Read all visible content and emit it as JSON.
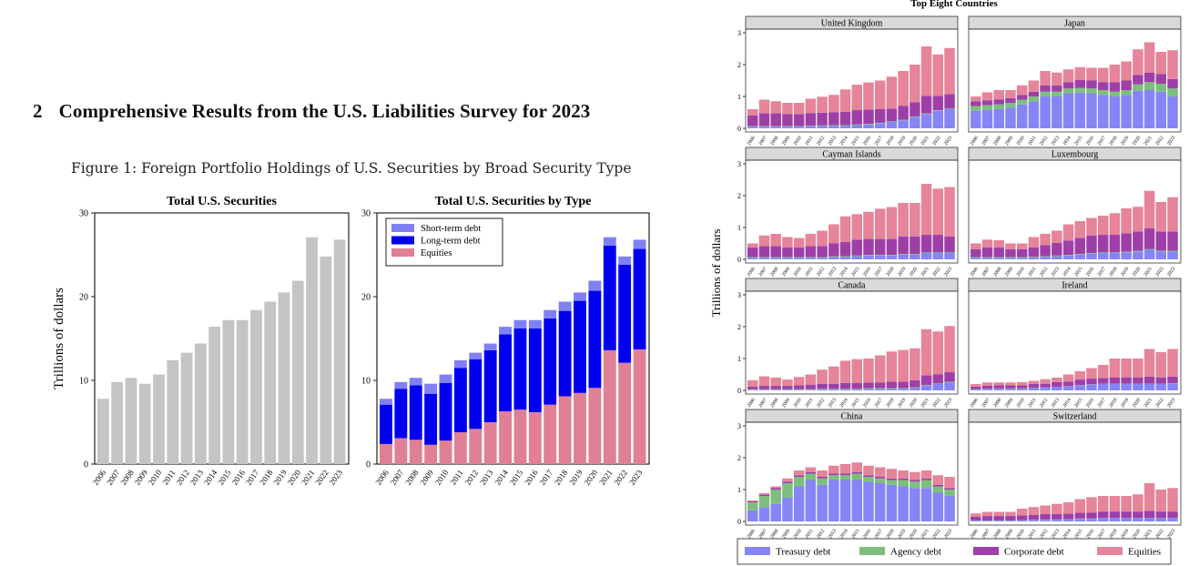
{
  "section": {
    "number": "2",
    "title": "Comprehensive Results from the U.S. Liabilities Survey for 2023"
  },
  "figure": {
    "caption": "Figure 1: Foreign Portfolio Holdings of U.S. Securities by Broad Security Type"
  },
  "colors": {
    "gray_bar": "#c4c4c4",
    "short_term": "#8080f5",
    "long_term": "#0000f0",
    "equities_left": "#e07f95",
    "treasury": "#8585f8",
    "agency": "#7cbf7c",
    "corporate": "#9e3fa8",
    "equities_right": "#e68499",
    "panel_strip": "#d9d9d9"
  },
  "chart_data": [
    {
      "type": "bar",
      "title": "Total U.S. Securities",
      "ylabel": "Trillions of dollars",
      "xlabel": "",
      "ylim": [
        0,
        30
      ],
      "yticks": [
        "0",
        "10",
        "20",
        "30"
      ],
      "categories": [
        "2006",
        "2007",
        "2008",
        "2009",
        "2010",
        "2011",
        "2012",
        "2013",
        "2014",
        "2015",
        "2016",
        "2017",
        "2018",
        "2019",
        "2020",
        "2021",
        "2022",
        "2023"
      ],
      "values": [
        7.8,
        9.8,
        10.3,
        9.6,
        10.7,
        12.4,
        13.3,
        14.4,
        16.4,
        17.2,
        17.2,
        18.4,
        19.4,
        20.5,
        21.9,
        27.1,
        24.8,
        26.8
      ]
    },
    {
      "type": "stacked-bar",
      "title": "Total U.S. Securities by Type",
      "ylim": [
        0,
        30
      ],
      "yticks": [
        "0",
        "10",
        "20",
        "30"
      ],
      "legend_position": "top-left",
      "categories": [
        "2006",
        "2007",
        "2008",
        "2009",
        "2010",
        "2011",
        "2012",
        "2013",
        "2014",
        "2015",
        "2016",
        "2017",
        "2018",
        "2019",
        "2020",
        "2021",
        "2022",
        "2023"
      ],
      "series": [
        {
          "name": "Equities",
          "values": [
            2.4,
            3.1,
            2.9,
            2.3,
            2.8,
            3.8,
            4.2,
            5.0,
            6.3,
            6.5,
            6.2,
            7.1,
            8.1,
            8.5,
            9.1,
            13.6,
            12.1,
            13.7
          ]
        },
        {
          "name": "Long-term debt",
          "values": [
            4.7,
            5.9,
            6.5,
            6.1,
            6.9,
            7.7,
            8.3,
            8.6,
            9.2,
            9.7,
            10.0,
            10.3,
            10.2,
            11.0,
            11.6,
            12.5,
            11.7,
            12.0
          ]
        },
        {
          "name": "Short-term debt",
          "values": [
            0.7,
            0.8,
            0.9,
            1.2,
            1.0,
            0.9,
            0.8,
            0.8,
            0.9,
            1.0,
            1.0,
            1.0,
            1.1,
            1.0,
            1.2,
            1.0,
            1.0,
            1.1
          ]
        }
      ],
      "legend_order": [
        "Short-term debt",
        "Long-term debt",
        "Equities"
      ]
    },
    {
      "type": "stacked-bar-facets",
      "title": "Top Eight Countries",
      "ylabel": "Trillions of dollars",
      "ylim": [
        0,
        3
      ],
      "yticks": [
        "0",
        "1",
        "2",
        "3"
      ],
      "categories": [
        "2006",
        "2007",
        "2008",
        "2009",
        "2010",
        "2011",
        "2012",
        "2013",
        "2014",
        "2015",
        "2016",
        "2017",
        "2018",
        "2019",
        "2020",
        "2021",
        "2022",
        "2023"
      ],
      "series_names": [
        "Treasury debt",
        "Agency debt",
        "Corporate debt",
        "Equities"
      ],
      "panels": [
        {
          "name": "United Kingdom",
          "treasury": [
            0.05,
            0.05,
            0.05,
            0.05,
            0.05,
            0.06,
            0.07,
            0.08,
            0.08,
            0.1,
            0.12,
            0.15,
            0.2,
            0.25,
            0.35,
            0.45,
            0.55,
            0.6
          ],
          "agency": [
            0.02,
            0.02,
            0.02,
            0.02,
            0.02,
            0.02,
            0.02,
            0.02,
            0.02,
            0.02,
            0.02,
            0.02,
            0.02,
            0.02,
            0.02,
            0.02,
            0.02,
            0.02
          ],
          "corporate": [
            0.33,
            0.4,
            0.4,
            0.38,
            0.38,
            0.4,
            0.4,
            0.4,
            0.42,
            0.45,
            0.45,
            0.43,
            0.4,
            0.43,
            0.45,
            0.55,
            0.45,
            0.45
          ],
          "equities": [
            0.2,
            0.43,
            0.38,
            0.35,
            0.35,
            0.45,
            0.5,
            0.55,
            0.7,
            0.8,
            0.85,
            0.9,
            1.0,
            1.1,
            1.18,
            1.55,
            1.3,
            1.45
          ]
        },
        {
          "name": "Japan",
          "treasury": [
            0.55,
            0.58,
            0.6,
            0.65,
            0.75,
            0.85,
            1.0,
            1.0,
            1.1,
            1.12,
            1.1,
            1.05,
            1.0,
            1.05,
            1.18,
            1.2,
            1.15,
            1.0
          ],
          "agency": [
            0.15,
            0.15,
            0.15,
            0.15,
            0.15,
            0.15,
            0.15,
            0.15,
            0.15,
            0.15,
            0.15,
            0.15,
            0.15,
            0.15,
            0.2,
            0.25,
            0.25,
            0.25
          ],
          "corporate": [
            0.15,
            0.15,
            0.15,
            0.15,
            0.15,
            0.15,
            0.2,
            0.2,
            0.2,
            0.25,
            0.25,
            0.25,
            0.3,
            0.3,
            0.3,
            0.3,
            0.3,
            0.3
          ],
          "equities": [
            0.15,
            0.25,
            0.3,
            0.25,
            0.3,
            0.35,
            0.45,
            0.4,
            0.4,
            0.4,
            0.4,
            0.45,
            0.55,
            0.6,
            0.8,
            0.95,
            0.7,
            0.9
          ]
        },
        {
          "name": "Cayman Islands",
          "treasury": [
            0.05,
            0.05,
            0.05,
            0.05,
            0.05,
            0.05,
            0.05,
            0.08,
            0.08,
            0.1,
            0.12,
            0.12,
            0.12,
            0.15,
            0.15,
            0.2,
            0.2,
            0.2
          ],
          "agency": [
            0.02,
            0.02,
            0.02,
            0.02,
            0.02,
            0.02,
            0.02,
            0.02,
            0.02,
            0.02,
            0.02,
            0.02,
            0.02,
            0.02,
            0.02,
            0.02,
            0.02,
            0.02
          ],
          "corporate": [
            0.3,
            0.35,
            0.35,
            0.3,
            0.3,
            0.35,
            0.35,
            0.4,
            0.45,
            0.5,
            0.5,
            0.5,
            0.5,
            0.55,
            0.55,
            0.55,
            0.55,
            0.5
          ],
          "equities": [
            0.13,
            0.33,
            0.38,
            0.33,
            0.3,
            0.38,
            0.48,
            0.6,
            0.8,
            0.8,
            0.85,
            0.95,
            1.0,
            1.05,
            1.05,
            1.6,
            1.45,
            1.55
          ]
        },
        {
          "name": "Luxembourg",
          "treasury": [
            0.05,
            0.05,
            0.05,
            0.05,
            0.05,
            0.06,
            0.08,
            0.1,
            0.12,
            0.15,
            0.18,
            0.2,
            0.2,
            0.22,
            0.25,
            0.3,
            0.25,
            0.25
          ],
          "agency": [
            0.02,
            0.02,
            0.02,
            0.02,
            0.02,
            0.02,
            0.02,
            0.02,
            0.02,
            0.02,
            0.02,
            0.02,
            0.02,
            0.02,
            0.02,
            0.02,
            0.02,
            0.02
          ],
          "corporate": [
            0.25,
            0.3,
            0.3,
            0.25,
            0.25,
            0.3,
            0.35,
            0.4,
            0.45,
            0.5,
            0.55,
            0.55,
            0.55,
            0.58,
            0.6,
            0.65,
            0.6,
            0.6
          ],
          "equities": [
            0.18,
            0.25,
            0.23,
            0.18,
            0.18,
            0.32,
            0.35,
            0.38,
            0.51,
            0.53,
            0.55,
            0.6,
            0.68,
            0.78,
            0.78,
            1.18,
            0.93,
            1.08
          ]
        },
        {
          "name": "Canada",
          "treasury": [
            0.02,
            0.02,
            0.02,
            0.02,
            0.02,
            0.02,
            0.03,
            0.03,
            0.03,
            0.03,
            0.05,
            0.05,
            0.05,
            0.05,
            0.08,
            0.15,
            0.2,
            0.25
          ],
          "agency": [
            0.02,
            0.02,
            0.02,
            0.02,
            0.02,
            0.02,
            0.02,
            0.02,
            0.02,
            0.02,
            0.02,
            0.02,
            0.02,
            0.02,
            0.02,
            0.02,
            0.02,
            0.02
          ],
          "corporate": [
            0.08,
            0.1,
            0.1,
            0.1,
            0.12,
            0.14,
            0.15,
            0.15,
            0.18,
            0.18,
            0.18,
            0.18,
            0.2,
            0.2,
            0.22,
            0.3,
            0.28,
            0.3
          ],
          "equities": [
            0.2,
            0.3,
            0.26,
            0.2,
            0.26,
            0.32,
            0.45,
            0.55,
            0.7,
            0.75,
            0.75,
            0.85,
            0.95,
            1.0,
            1.0,
            1.45,
            1.35,
            1.45
          ]
        },
        {
          "name": "Ireland",
          "treasury": [
            0.03,
            0.04,
            0.05,
            0.05,
            0.05,
            0.07,
            0.08,
            0.1,
            0.12,
            0.15,
            0.18,
            0.2,
            0.2,
            0.2,
            0.2,
            0.2,
            0.2,
            0.22
          ],
          "agency": [
            0.01,
            0.01,
            0.01,
            0.01,
            0.01,
            0.01,
            0.01,
            0.01,
            0.01,
            0.01,
            0.01,
            0.01,
            0.01,
            0.01,
            0.01,
            0.01,
            0.01,
            0.01
          ],
          "corporate": [
            0.08,
            0.1,
            0.1,
            0.1,
            0.1,
            0.12,
            0.12,
            0.15,
            0.15,
            0.18,
            0.18,
            0.18,
            0.2,
            0.2,
            0.2,
            0.22,
            0.2,
            0.2
          ],
          "equities": [
            0.08,
            0.1,
            0.09,
            0.09,
            0.1,
            0.1,
            0.14,
            0.14,
            0.22,
            0.26,
            0.33,
            0.41,
            0.59,
            0.59,
            0.59,
            0.87,
            0.79,
            0.87
          ]
        },
        {
          "name": "China",
          "treasury": [
            0.35,
            0.45,
            0.55,
            0.75,
            1.1,
            1.3,
            1.15,
            1.3,
            1.3,
            1.3,
            1.25,
            1.2,
            1.15,
            1.1,
            1.05,
            1.05,
            0.9,
            0.8
          ],
          "agency": [
            0.25,
            0.35,
            0.45,
            0.45,
            0.3,
            0.2,
            0.2,
            0.15,
            0.15,
            0.2,
            0.15,
            0.15,
            0.15,
            0.2,
            0.2,
            0.25,
            0.2,
            0.2
          ],
          "corporate": [
            0.03,
            0.04,
            0.05,
            0.05,
            0.05,
            0.05,
            0.05,
            0.05,
            0.05,
            0.05,
            0.05,
            0.05,
            0.05,
            0.05,
            0.05,
            0.05,
            0.05,
            0.05
          ],
          "equities": [
            0.03,
            0.05,
            0.05,
            0.1,
            0.15,
            0.15,
            0.2,
            0.25,
            0.3,
            0.3,
            0.3,
            0.3,
            0.3,
            0.25,
            0.25,
            0.25,
            0.3,
            0.35
          ]
        },
        {
          "name": "Switzerland",
          "treasury": [
            0.02,
            0.02,
            0.02,
            0.02,
            0.03,
            0.04,
            0.05,
            0.05,
            0.06,
            0.08,
            0.08,
            0.1,
            0.1,
            0.1,
            0.1,
            0.1,
            0.1,
            0.1
          ],
          "agency": [
            0.01,
            0.01,
            0.01,
            0.01,
            0.01,
            0.01,
            0.01,
            0.01,
            0.01,
            0.01,
            0.01,
            0.01,
            0.01,
            0.01,
            0.01,
            0.01,
            0.01,
            0.01
          ],
          "corporate": [
            0.12,
            0.14,
            0.14,
            0.14,
            0.15,
            0.15,
            0.17,
            0.17,
            0.17,
            0.18,
            0.19,
            0.2,
            0.2,
            0.2,
            0.2,
            0.22,
            0.2,
            0.2
          ],
          "equities": [
            0.1,
            0.13,
            0.13,
            0.13,
            0.21,
            0.25,
            0.27,
            0.32,
            0.36,
            0.43,
            0.48,
            0.49,
            0.49,
            0.49,
            0.54,
            0.87,
            0.69,
            0.74
          ]
        }
      ]
    }
  ]
}
